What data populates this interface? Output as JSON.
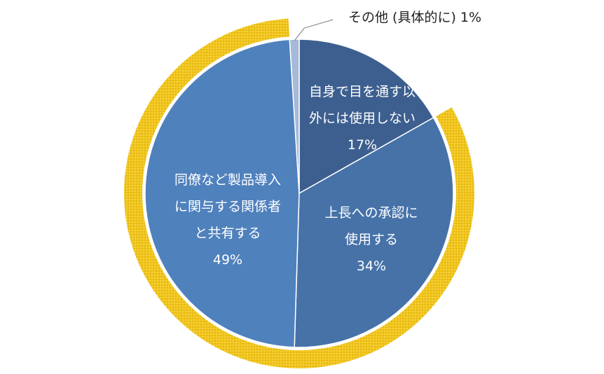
{
  "chart_data": {
    "type": "pie",
    "title": "",
    "slices": [
      {
        "label": "自身で目を通す以外には使用しない",
        "value": 17,
        "display": "自身で目を通す以\n外には使用しない\n17%",
        "color": "#3d5f8f"
      },
      {
        "label": "上長への承認に使用する",
        "value": 34,
        "display": "上長への承認に\n使用する\n34%",
        "color": "#4672a8"
      },
      {
        "label": "同僚など製品導入に関与する関係者と共有する",
        "value": 49,
        "display": "同僚など製品導入\nに関与する関係者\nと共有する\n49%",
        "color": "#4f81bd"
      },
      {
        "label": "その他 (具体的に)",
        "value": 1,
        "display": "その他 (具体的に) 1%",
        "color": "#a6b9d8"
      }
    ],
    "outer_ring": {
      "color": "#f0c419",
      "spans_slices": [
        "上長への承認に使用する",
        "同僚など製品導入に関与する関係者と共有する"
      ]
    }
  }
}
